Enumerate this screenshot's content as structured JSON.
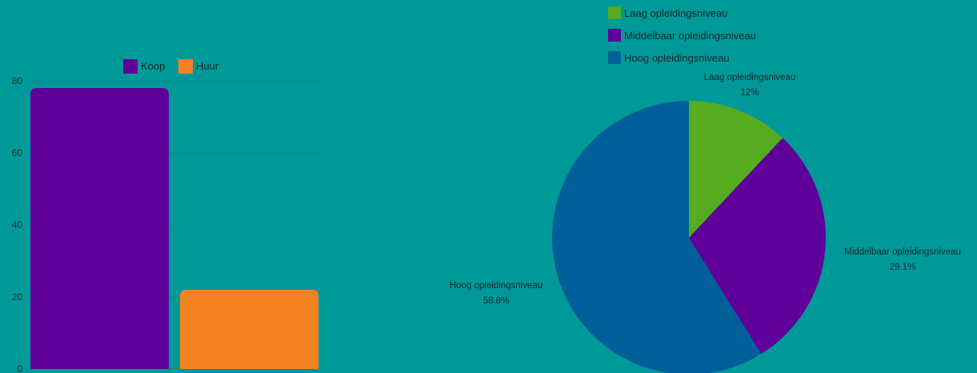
{
  "chart_data": [
    {
      "type": "bar",
      "categories": [
        ""
      ],
      "series": [
        {
          "name": "Koop",
          "values": [
            78
          ],
          "color": "#5e0099"
        },
        {
          "name": "Huur",
          "values": [
            22
          ],
          "color": "#f58220"
        }
      ],
      "yticks": [
        "0",
        "20",
        "40",
        "60",
        "80"
      ],
      "ylim": [
        0,
        80
      ],
      "grid": true,
      "legend": "top-center"
    },
    {
      "type": "pie",
      "slices": [
        {
          "name": "Laag opleidingsniveau",
          "value": 12,
          "label": "12%",
          "color": "#56ab1f"
        },
        {
          "name": "Middelbaar opleidingsniveau",
          "value": 29.1,
          "label": "29.1%",
          "color": "#5e0099"
        },
        {
          "name": "Hoog opleidingsniveau",
          "value": 58.8,
          "label": "58.8%",
          "color": "#005f99"
        }
      ],
      "legend": "top"
    }
  ]
}
